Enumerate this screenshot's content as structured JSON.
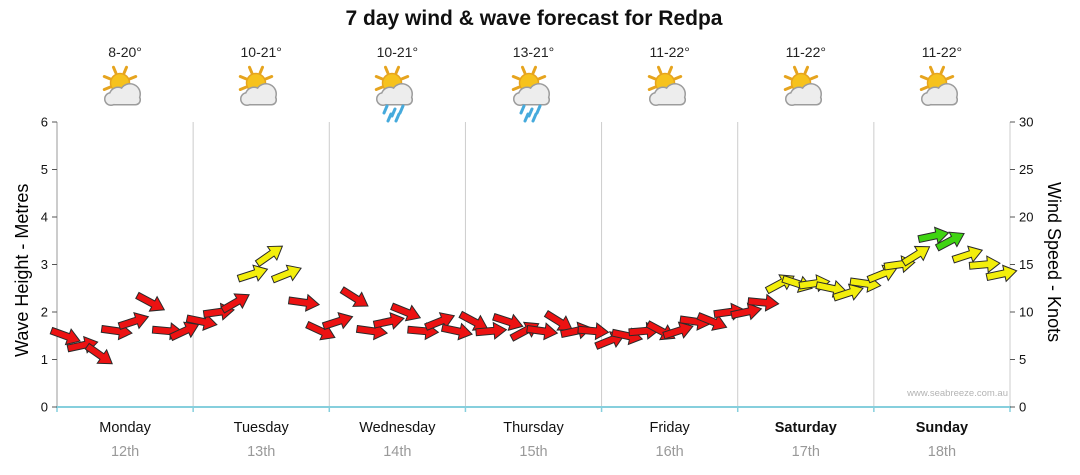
{
  "title": "7 day wind & wave forecast for Redpa",
  "watermark": "www.seabreeze.com.au",
  "forecast": {
    "days": [
      {
        "temp": "8-20°",
        "icon": "sun-cloud",
        "day": "Monday",
        "date": "12th",
        "bold": false
      },
      {
        "temp": "10-21°",
        "icon": "sun-cloud",
        "day": "Tuesday",
        "date": "13th",
        "bold": false
      },
      {
        "temp": "10-21°",
        "icon": "sun-cloud-rain",
        "day": "Wednesday",
        "date": "14th",
        "bold": false
      },
      {
        "temp": "13-21°",
        "icon": "sun-cloud-rain",
        "day": "Thursday",
        "date": "15th",
        "bold": false
      },
      {
        "temp": "11-22°",
        "icon": "sun-cloud",
        "day": "Friday",
        "date": "16th",
        "bold": false
      },
      {
        "temp": "11-22°",
        "icon": "sun-cloud",
        "day": "Saturday",
        "date": "17th",
        "bold": true
      },
      {
        "temp": "11-22°",
        "icon": "sun-cloud",
        "day": "Sunday",
        "date": "18th",
        "bold": true
      }
    ]
  },
  "chart_data": {
    "type": "scatter",
    "title": "7 day wind & wave forecast for Redpa",
    "x_categories": [
      "Monday 12th",
      "Tuesday 13th",
      "Wednesday 14th",
      "Thursday 15th",
      "Friday 16th",
      "Saturday 17th",
      "Sunday 18th"
    ],
    "y_left": {
      "label": "Wave Height - Metres",
      "min": 0,
      "max": 6,
      "ticks": [
        0,
        1,
        2,
        3,
        4,
        5,
        6
      ]
    },
    "y_right": {
      "label": "Wind Speed - Knots",
      "min": 0,
      "max": 30,
      "ticks": [
        0,
        5,
        10,
        15,
        20,
        25,
        30
      ]
    },
    "grid": {
      "vertical_day_lines": true,
      "horizontal": false
    },
    "wind": {
      "units": "knots",
      "points_per_day": 8,
      "speeds": [
        7.5,
        6.5,
        5.5,
        8,
        9,
        11,
        8,
        8,
        9,
        10,
        11,
        14,
        16,
        14,
        11,
        8,
        9,
        11.5,
        8,
        9,
        10,
        8,
        9,
        8,
        9,
        8,
        9,
        8,
        8,
        9,
        8,
        8,
        7,
        7.5,
        8,
        8,
        8,
        9,
        9,
        10,
        10,
        11,
        13,
        13,
        13,
        12.5,
        12,
        13,
        14,
        15,
        16,
        18,
        17.5,
        16,
        15,
        14
      ],
      "directions_deg": [
        20,
        -12,
        35,
        8,
        -18,
        28,
        5,
        -25,
        12,
        -8,
        -30,
        -18,
        -35,
        -22,
        8,
        25,
        -18,
        32,
        8,
        -12,
        22,
        5,
        -22,
        12,
        28,
        -5,
        18,
        -28,
        8,
        32,
        -12,
        5,
        -22,
        12,
        -5,
        28,
        -18,
        8,
        22,
        -8,
        -12,
        5,
        -28,
        18,
        -8,
        12,
        -18,
        8,
        -22,
        -8,
        -32,
        -12,
        -28,
        -18,
        -5,
        -12
      ],
      "color_scale": [
        {
          "label": "light",
          "max": 11.9,
          "color": "#ec1212"
        },
        {
          "label": "moderate",
          "max": 16.4,
          "color": "#f3ee0b"
        },
        {
          "label": "fresh",
          "max": 30,
          "color": "#3fd412"
        }
      ]
    }
  }
}
